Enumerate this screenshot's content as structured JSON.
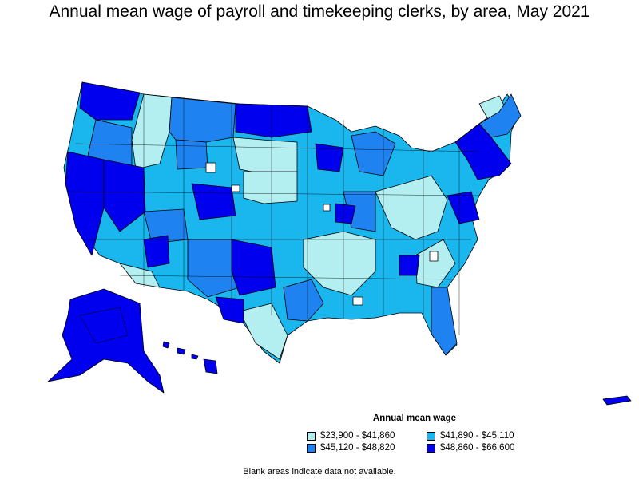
{
  "title": "Annual mean wage of payroll and timekeeping clerks, by area, May 2021",
  "legend": {
    "title": "Annual mean wage",
    "items": [
      {
        "label": "$23,900 - $41,860",
        "color": "#b3eef0"
      },
      {
        "label": "$41,890 - $45,110",
        "color": "#1ab6ee"
      },
      {
        "label": "$45,120 - $48,820",
        "color": "#1e82f0"
      },
      {
        "label": "$48,860 - $66,600",
        "color": "#0000ee"
      }
    ]
  },
  "note": "Blank areas indicate data not available.",
  "colors": {
    "tier1": "#b3eef0",
    "tier2": "#1ab6ee",
    "tier3": "#1e82f0",
    "tier4": "#0000ee",
    "border": "#000000"
  }
}
